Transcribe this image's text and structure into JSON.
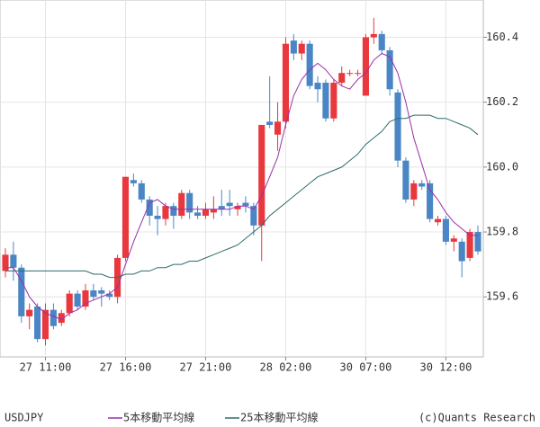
{
  "chart_data": {
    "type": "candlestick",
    "symbol": "USDJPY",
    "copyright": "(c)Quants Research",
    "categories": [
      null,
      null,
      null,
      null,
      null,
      "27 11:00",
      null,
      null,
      null,
      null,
      null,
      null,
      null,
      null,
      null,
      "27 16:00",
      null,
      null,
      null,
      null,
      null,
      null,
      null,
      null,
      null,
      "27 21:00",
      null,
      null,
      null,
      null,
      null,
      null,
      null,
      null,
      null,
      "28 02:00",
      null,
      null,
      null,
      null,
      null,
      null,
      null,
      null,
      null,
      "30 07:00",
      null,
      null,
      null,
      null,
      null,
      null,
      null,
      null,
      null,
      "30 12:00",
      null,
      null,
      null,
      null
    ],
    "open": [
      159.68,
      159.73,
      159.69,
      159.54,
      159.57,
      159.47,
      159.56,
      159.52,
      159.55,
      159.61,
      159.57,
      159.62,
      159.62,
      159.61,
      159.6,
      159.72,
      159.96,
      159.95,
      159.9,
      159.85,
      159.84,
      159.88,
      159.85,
      159.92,
      159.86,
      159.85,
      159.86,
      159.88,
      159.89,
      159.87,
      159.89,
      159.88,
      159.82,
      160.14,
      160.1,
      160.14,
      160.39,
      160.35,
      160.38,
      160.26,
      160.26,
      160.15,
      160.26,
      160.29,
      160.29,
      160.22,
      160.4,
      160.41,
      160.36,
      160.23,
      160.02,
      159.9,
      159.95,
      159.95,
      159.83,
      159.84,
      159.77,
      159.77,
      159.72,
      159.8
    ],
    "high": [
      159.75,
      159.77,
      159.7,
      159.58,
      159.58,
      159.58,
      159.58,
      159.56,
      159.62,
      159.62,
      159.64,
      159.64,
      159.63,
      159.62,
      159.73,
      159.97,
      159.98,
      159.96,
      159.91,
      159.88,
      159.89,
      159.89,
      159.93,
      159.93,
      159.88,
      159.89,
      159.91,
      159.93,
      159.93,
      159.89,
      159.91,
      159.89,
      160.13,
      160.28,
      160.2,
      160.4,
      160.41,
      160.39,
      160.39,
      160.28,
      160.27,
      160.27,
      160.31,
      160.3,
      160.3,
      160.41,
      160.46,
      160.42,
      160.37,
      160.24,
      160.03,
      159.96,
      159.96,
      159.96,
      159.85,
      159.85,
      159.79,
      159.78,
      159.81,
      159.82
    ],
    "low": [
      159.66,
      159.65,
      159.52,
      159.5,
      159.46,
      159.45,
      159.5,
      159.51,
      159.54,
      159.56,
      159.56,
      159.59,
      159.57,
      159.59,
      159.58,
      159.71,
      159.94,
      159.89,
      159.82,
      159.79,
      159.82,
      159.81,
      159.84,
      159.84,
      159.84,
      159.84,
      159.84,
      159.85,
      159.85,
      159.85,
      159.86,
      159.79,
      159.71,
      160.12,
      160.05,
      160.12,
      160.33,
      160.33,
      160.24,
      160.2,
      160.14,
      160.14,
      160.25,
      160.28,
      160.28,
      160.22,
      160.38,
      160.35,
      160.22,
      160.0,
      159.89,
      159.88,
      159.93,
      159.83,
      159.82,
      159.76,
      159.74,
      159.66,
      159.71,
      159.73
    ],
    "close": [
      159.73,
      159.69,
      159.54,
      159.56,
      159.47,
      159.56,
      159.51,
      159.55,
      159.61,
      159.57,
      159.62,
      159.6,
      159.61,
      159.6,
      159.72,
      159.97,
      159.95,
      159.9,
      159.85,
      159.84,
      159.88,
      159.85,
      159.92,
      159.86,
      159.85,
      159.87,
      159.87,
      159.87,
      159.88,
      159.88,
      159.88,
      159.82,
      160.13,
      160.13,
      160.14,
      160.38,
      160.35,
      160.38,
      160.25,
      160.24,
      160.15,
      160.26,
      160.29,
      160.29,
      160.29,
      160.4,
      160.41,
      160.36,
      160.24,
      160.02,
      159.9,
      159.95,
      159.94,
      159.84,
      159.84,
      159.77,
      159.78,
      159.71,
      159.8,
      159.74
    ],
    "up_color": "#e8383d",
    "down_color": "#4a86c5",
    "series": [
      {
        "name": "5本移動平均線",
        "color": "#9a2fa8",
        "values": [
          159.69,
          159.69,
          159.65,
          159.6,
          159.57,
          159.55,
          159.54,
          159.53,
          159.55,
          159.56,
          159.58,
          159.59,
          159.6,
          159.61,
          159.63,
          159.7,
          159.77,
          159.83,
          159.89,
          159.9,
          159.88,
          159.87,
          159.87,
          159.87,
          159.87,
          159.87,
          159.87,
          159.87,
          159.87,
          159.88,
          159.88,
          159.87,
          159.91,
          159.97,
          160.03,
          160.13,
          160.22,
          160.27,
          160.3,
          160.32,
          160.3,
          160.27,
          160.25,
          160.24,
          160.27,
          160.29,
          160.33,
          160.35,
          160.34,
          160.29,
          160.2,
          160.09,
          160.01,
          159.93,
          159.9,
          159.86,
          159.83,
          159.81,
          159.79,
          159.79
        ]
      },
      {
        "name": "25本移動平均線",
        "color": "#2f6b6b",
        "values": [
          159.68,
          159.68,
          159.68,
          159.68,
          159.68,
          159.68,
          159.68,
          159.68,
          159.68,
          159.68,
          159.68,
          159.67,
          159.67,
          159.66,
          159.66,
          159.67,
          159.67,
          159.68,
          159.68,
          159.69,
          159.69,
          159.7,
          159.7,
          159.71,
          159.71,
          159.72,
          159.73,
          159.74,
          159.75,
          159.76,
          159.78,
          159.8,
          159.82,
          159.85,
          159.87,
          159.89,
          159.91,
          159.93,
          159.95,
          159.97,
          159.98,
          159.99,
          160.0,
          160.02,
          160.04,
          160.07,
          160.09,
          160.11,
          160.14,
          160.15,
          160.15,
          160.16,
          160.16,
          160.16,
          160.15,
          160.15,
          160.14,
          160.13,
          160.12,
          160.1
        ]
      }
    ],
    "ylim": [
      159.415,
      160.515
    ],
    "yticks": [
      159.6,
      159.8,
      {
        "value": 160,
        "label": "160.0"
      },
      160.2,
      160.4
    ],
    "grid": true
  }
}
